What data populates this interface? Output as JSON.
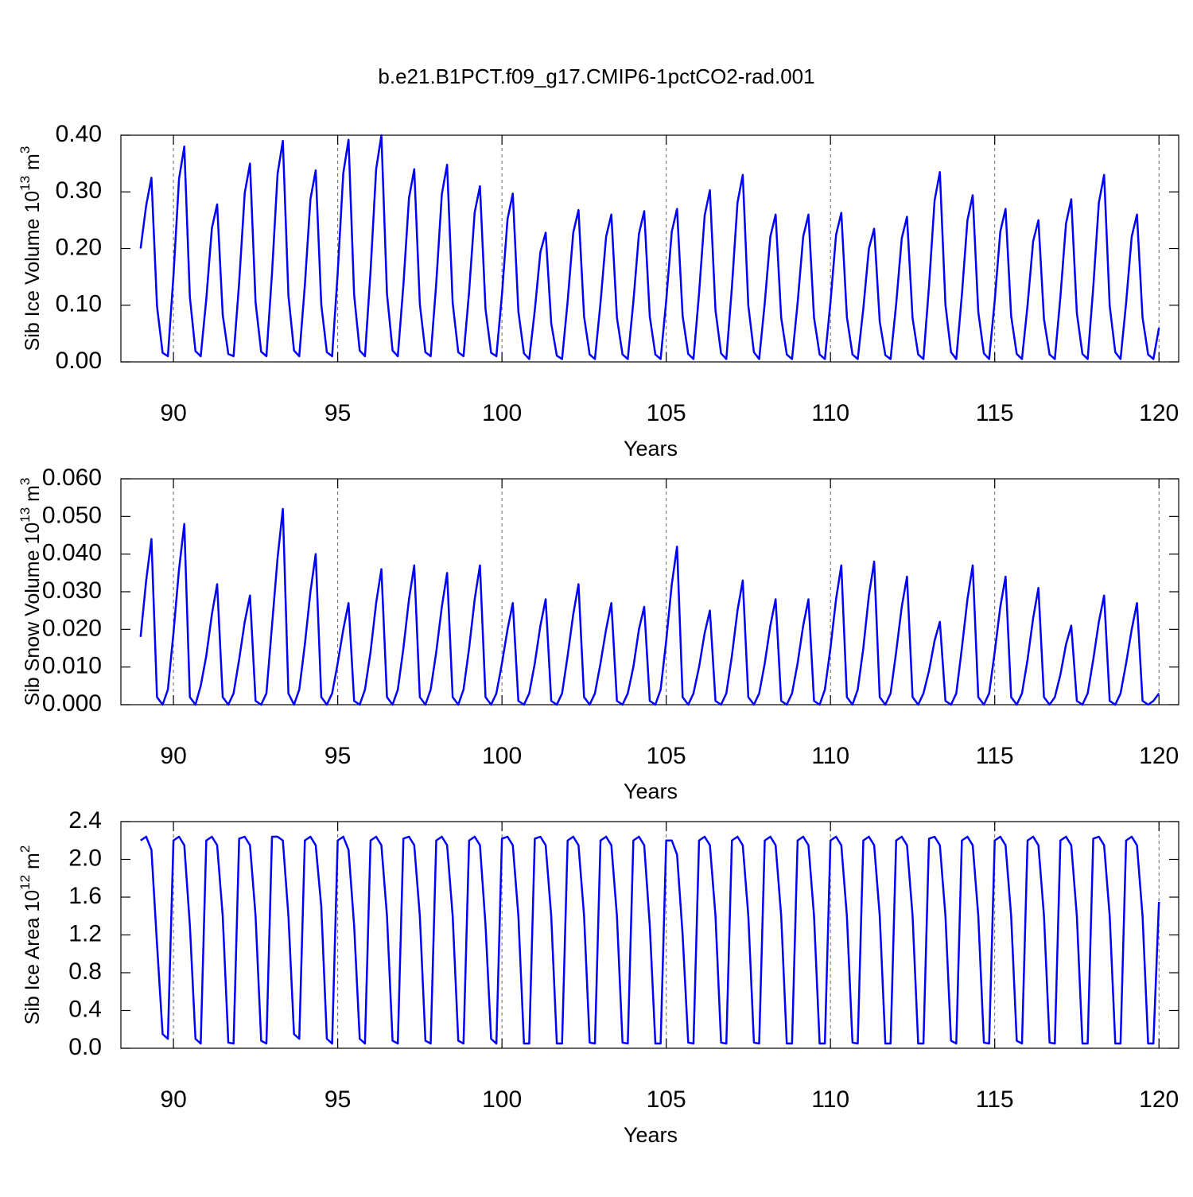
{
  "chart_data": [
    {
      "type": "line",
      "title": "b.e21.B1PCT.f09_g17.CMIP6-1pctCO2-rad.001",
      "ylabel": {
        "text": "Sib Ice Volume 10",
        "exponent": "13",
        "unit": " m",
        "unit_exponent": "3"
      },
      "xlabel": "Years",
      "color": "#0000ff",
      "grid": true,
      "xlim": [
        88.4,
        120.6
      ],
      "xticks": [
        90,
        95,
        100,
        105,
        110,
        115,
        120
      ],
      "ylim": [
        0,
        0.4
      ],
      "yticks": [
        {
          "value": 0,
          "label": "0.00"
        },
        {
          "value": 0.1,
          "label": "0.10"
        },
        {
          "value": 0.2,
          "label": "0.20"
        },
        {
          "value": 0.3,
          "label": "0.30"
        },
        {
          "value": 0.4,
          "label": "0.40"
        }
      ],
      "x": [
        89,
        89.17,
        89.33,
        89.5,
        89.67,
        89.83,
        90,
        90.17,
        90.33,
        90.5,
        90.67,
        90.83,
        91,
        91.17,
        91.33,
        91.5,
        91.67,
        91.83,
        92,
        92.17,
        92.33,
        92.5,
        92.67,
        92.83,
        93,
        93.17,
        93.33,
        93.5,
        93.67,
        93.83,
        94,
        94.17,
        94.33,
        94.5,
        94.67,
        94.83,
        95,
        95.17,
        95.33,
        95.5,
        95.67,
        95.83,
        96,
        96.17,
        96.33,
        96.5,
        96.67,
        96.83,
        97,
        97.17,
        97.33,
        97.5,
        97.67,
        97.83,
        98,
        98.17,
        98.33,
        98.5,
        98.67,
        98.83,
        99,
        99.17,
        99.33,
        99.5,
        99.67,
        99.83,
        100,
        100.17,
        100.33,
        100.5,
        100.67,
        100.83,
        101,
        101.17,
        101.33,
        101.5,
        101.67,
        101.83,
        102,
        102.17,
        102.33,
        102.5,
        102.67,
        102.83,
        103,
        103.17,
        103.33,
        103.5,
        103.67,
        103.83,
        104,
        104.17,
        104.33,
        104.5,
        104.67,
        104.83,
        105,
        105.17,
        105.33,
        105.5,
        105.67,
        105.83,
        106,
        106.17,
        106.33,
        106.5,
        106.67,
        106.83,
        107,
        107.17,
        107.33,
        107.5,
        107.67,
        107.83,
        108,
        108.17,
        108.33,
        108.5,
        108.67,
        108.83,
        109,
        109.17,
        109.33,
        109.5,
        109.67,
        109.83,
        110,
        110.17,
        110.33,
        110.5,
        110.67,
        110.83,
        111,
        111.17,
        111.33,
        111.5,
        111.67,
        111.83,
        112,
        112.17,
        112.33,
        112.5,
        112.67,
        112.83,
        113,
        113.17,
        113.33,
        113.5,
        113.67,
        113.83,
        114,
        114.17,
        114.33,
        114.5,
        114.67,
        114.83,
        115,
        115.17,
        115.33,
        115.5,
        115.67,
        115.83,
        116,
        116.17,
        116.33,
        116.5,
        116.67,
        116.83,
        117,
        117.17,
        117.33,
        117.5,
        117.67,
        117.83,
        118,
        118.17,
        118.33,
        118.5,
        118.67,
        118.83,
        119,
        119.17,
        119.33,
        119.5,
        119.67,
        119.83,
        120
      ],
      "values": [
        0.2,
        0.276,
        0.325,
        0.098,
        0.016,
        0.01,
        0.152,
        0.323,
        0.38,
        0.114,
        0.019,
        0.01,
        0.111,
        0.236,
        0.278,
        0.083,
        0.014,
        0.01,
        0.14,
        0.298,
        0.35,
        0.105,
        0.018,
        0.01,
        0.156,
        0.332,
        0.39,
        0.117,
        0.02,
        0.01,
        0.135,
        0.287,
        0.338,
        0.101,
        0.017,
        0.01,
        0.157,
        0.333,
        0.392,
        0.118,
        0.02,
        0.01,
        0.16,
        0.34,
        0.4,
        0.12,
        0.02,
        0.01,
        0.136,
        0.289,
        0.34,
        0.102,
        0.017,
        0.01,
        0.139,
        0.296,
        0.348,
        0.104,
        0.017,
        0.01,
        0.124,
        0.264,
        0.31,
        0.093,
        0.016,
        0.01,
        0.119,
        0.252,
        0.297,
        0.089,
        0.015,
        0.005,
        0.091,
        0.194,
        0.228,
        0.068,
        0.011,
        0.005,
        0.107,
        0.228,
        0.268,
        0.08,
        0.013,
        0.005,
        0.104,
        0.221,
        0.26,
        0.078,
        0.013,
        0.005,
        0.106,
        0.226,
        0.266,
        0.08,
        0.013,
        0.005,
        0.108,
        0.23,
        0.27,
        0.081,
        0.014,
        0.005,
        0.121,
        0.258,
        0.303,
        0.091,
        0.015,
        0.005,
        0.132,
        0.281,
        0.33,
        0.099,
        0.017,
        0.005,
        0.104,
        0.221,
        0.26,
        0.078,
        0.013,
        0.005,
        0.104,
        0.221,
        0.26,
        0.078,
        0.013,
        0.005,
        0.105,
        0.224,
        0.263,
        0.079,
        0.013,
        0.005,
        0.094,
        0.2,
        0.235,
        0.071,
        0.012,
        0.005,
        0.102,
        0.218,
        0.256,
        0.077,
        0.013,
        0.005,
        0.134,
        0.285,
        0.335,
        0.101,
        0.017,
        0.005,
        0.118,
        0.25,
        0.294,
        0.088,
        0.015,
        0.005,
        0.108,
        0.23,
        0.27,
        0.081,
        0.014,
        0.005,
        0.1,
        0.213,
        0.25,
        0.075,
        0.013,
        0.005,
        0.115,
        0.244,
        0.287,
        0.086,
        0.014,
        0.005,
        0.132,
        0.281,
        0.33,
        0.099,
        0.017,
        0.005,
        0.104,
        0.221,
        0.26,
        0.078,
        0.013,
        0.005,
        0.06
      ]
    },
    {
      "type": "line",
      "ylabel": {
        "text": "Sib Snow Volume 10",
        "exponent": "13",
        "unit": " m",
        "unit_exponent": "3"
      },
      "xlabel": "Years",
      "color": "#0000ff",
      "grid": true,
      "xlim": [
        88.4,
        120.6
      ],
      "xticks": [
        90,
        95,
        100,
        105,
        110,
        115,
        120
      ],
      "ylim": [
        0,
        0.06
      ],
      "yticks": [
        {
          "value": 0,
          "label": "0.000"
        },
        {
          "value": 0.01,
          "label": "0.010"
        },
        {
          "value": 0.02,
          "label": "0.020"
        },
        {
          "value": 0.03,
          "label": "0.030"
        },
        {
          "value": 0.04,
          "label": "0.040"
        },
        {
          "value": 0.05,
          "label": "0.050"
        },
        {
          "value": 0.06,
          "label": "0.060"
        }
      ],
      "x": [
        89,
        89.17,
        89.33,
        89.5,
        89.67,
        89.83,
        90,
        90.17,
        90.33,
        90.5,
        90.67,
        90.83,
        91,
        91.17,
        91.33,
        91.5,
        91.67,
        91.83,
        92,
        92.17,
        92.33,
        92.5,
        92.67,
        92.83,
        93,
        93.17,
        93.33,
        93.5,
        93.67,
        93.83,
        94,
        94.17,
        94.33,
        94.5,
        94.67,
        94.83,
        95,
        95.17,
        95.33,
        95.5,
        95.67,
        95.83,
        96,
        96.17,
        96.33,
        96.5,
        96.67,
        96.83,
        97,
        97.17,
        97.33,
        97.5,
        97.67,
        97.83,
        98,
        98.17,
        98.33,
        98.5,
        98.67,
        98.83,
        99,
        99.17,
        99.33,
        99.5,
        99.67,
        99.83,
        100,
        100.17,
        100.33,
        100.5,
        100.67,
        100.83,
        101,
        101.17,
        101.33,
        101.5,
        101.67,
        101.83,
        102,
        102.17,
        102.33,
        102.5,
        102.67,
        102.83,
        103,
        103.17,
        103.33,
        103.5,
        103.67,
        103.83,
        104,
        104.17,
        104.33,
        104.5,
        104.67,
        104.83,
        105,
        105.17,
        105.33,
        105.5,
        105.67,
        105.83,
        106,
        106.17,
        106.33,
        106.5,
        106.67,
        106.83,
        107,
        107.17,
        107.33,
        107.5,
        107.67,
        107.83,
        108,
        108.17,
        108.33,
        108.5,
        108.67,
        108.83,
        109,
        109.17,
        109.33,
        109.5,
        109.67,
        109.83,
        110,
        110.17,
        110.33,
        110.5,
        110.67,
        110.83,
        111,
        111.17,
        111.33,
        111.5,
        111.67,
        111.83,
        112,
        112.17,
        112.33,
        112.5,
        112.67,
        112.83,
        113,
        113.17,
        113.33,
        113.5,
        113.67,
        113.83,
        114,
        114.17,
        114.33,
        114.5,
        114.67,
        114.83,
        115,
        115.17,
        115.33,
        115.5,
        115.67,
        115.83,
        116,
        116.17,
        116.33,
        116.5,
        116.67,
        116.83,
        117,
        117.17,
        117.33,
        117.5,
        117.67,
        117.83,
        118,
        118.17,
        118.33,
        118.5,
        118.67,
        118.83,
        119,
        119.17,
        119.33,
        119.5,
        119.67,
        119.83,
        120
      ],
      "values": [
        0.018,
        0.033,
        0.044,
        0.002,
        0,
        0.004,
        0.019,
        0.036,
        0.048,
        0.002,
        0,
        0.005,
        0.013,
        0.024,
        0.032,
        0.002,
        0,
        0.003,
        0.012,
        0.022,
        0.029,
        0.001,
        0,
        0.003,
        0.021,
        0.039,
        0.052,
        0.003,
        0,
        0.004,
        0.016,
        0.03,
        0.04,
        0.002,
        0,
        0.003,
        0.011,
        0.02,
        0.027,
        0.001,
        0,
        0.004,
        0.014,
        0.027,
        0.036,
        0.002,
        0,
        0.004,
        0.015,
        0.028,
        0.037,
        0.002,
        0,
        0.004,
        0.014,
        0.026,
        0.035,
        0.002,
        0,
        0.004,
        0.015,
        0.028,
        0.037,
        0.002,
        0,
        0.003,
        0.011,
        0.02,
        0.027,
        0.001,
        0,
        0.003,
        0.011,
        0.021,
        0.028,
        0.001,
        0,
        0.003,
        0.013,
        0.024,
        0.032,
        0.002,
        0,
        0.003,
        0.011,
        0.02,
        0.027,
        0.001,
        0,
        0.003,
        0.01,
        0.02,
        0.026,
        0.001,
        0,
        0.004,
        0.017,
        0.032,
        0.042,
        0.002,
        0,
        0.003,
        0.01,
        0.019,
        0.025,
        0.001,
        0,
        0.003,
        0.013,
        0.025,
        0.033,
        0.002,
        0,
        0.003,
        0.011,
        0.021,
        0.028,
        0.001,
        0,
        0.003,
        0.011,
        0.021,
        0.028,
        0.001,
        0,
        0.004,
        0.015,
        0.028,
        0.037,
        0.002,
        0,
        0.004,
        0.015,
        0.029,
        0.038,
        0.002,
        0,
        0.003,
        0.014,
        0.026,
        0.034,
        0.002,
        0,
        0.003,
        0.009,
        0.017,
        0.022,
        0.001,
        0,
        0.003,
        0.015,
        0.028,
        0.037,
        0.002,
        0,
        0.003,
        0.014,
        0.026,
        0.034,
        0.002,
        0,
        0.003,
        0.012,
        0.023,
        0.031,
        0.002,
        0,
        0.002,
        0.008,
        0.016,
        0.021,
        0.001,
        0,
        0.003,
        0.012,
        0.022,
        0.029,
        0.001,
        0,
        0.003,
        0.011,
        0.02,
        0.027,
        0.001,
        0,
        0.001,
        0.003
      ]
    },
    {
      "type": "line",
      "ylabel": {
        "text": "Sib Ice Area 10",
        "exponent": "12",
        "unit": " m",
        "unit_exponent": "2"
      },
      "xlabel": "Years",
      "color": "#0000ff",
      "grid": true,
      "xlim": [
        88.4,
        120.6
      ],
      "xticks": [
        90,
        95,
        100,
        105,
        110,
        115,
        120
      ],
      "ylim": [
        0,
        2.4
      ],
      "yticks": [
        {
          "value": 0,
          "label": "0.0"
        },
        0.4,
        0.8,
        1.2,
        1.6,
        {
          "value": 2,
          "label": "2.0"
        },
        2.4
      ],
      "x": [
        89,
        89.17,
        89.33,
        89.5,
        89.67,
        89.83,
        90,
        90.17,
        90.33,
        90.5,
        90.67,
        90.83,
        91,
        91.17,
        91.33,
        91.5,
        91.67,
        91.83,
        92,
        92.17,
        92.33,
        92.5,
        92.67,
        92.83,
        93,
        93.17,
        93.33,
        93.5,
        93.67,
        93.83,
        94,
        94.17,
        94.33,
        94.5,
        94.67,
        94.83,
        95,
        95.17,
        95.33,
        95.5,
        95.67,
        95.83,
        96,
        96.17,
        96.33,
        96.5,
        96.67,
        96.83,
        97,
        97.17,
        97.33,
        97.5,
        97.67,
        97.83,
        98,
        98.17,
        98.33,
        98.5,
        98.67,
        98.83,
        99,
        99.17,
        99.33,
        99.5,
        99.67,
        99.83,
        100,
        100.17,
        100.33,
        100.5,
        100.67,
        100.83,
        101,
        101.17,
        101.33,
        101.5,
        101.67,
        101.83,
        102,
        102.17,
        102.33,
        102.5,
        102.67,
        102.83,
        103,
        103.17,
        103.33,
        103.5,
        103.67,
        103.83,
        104,
        104.17,
        104.33,
        104.5,
        104.67,
        104.83,
        105,
        105.17,
        105.33,
        105.5,
        105.67,
        105.83,
        106,
        106.17,
        106.33,
        106.5,
        106.67,
        106.83,
        107,
        107.17,
        107.33,
        107.5,
        107.67,
        107.83,
        108,
        108.17,
        108.33,
        108.5,
        108.67,
        108.83,
        109,
        109.17,
        109.33,
        109.5,
        109.67,
        109.83,
        110,
        110.17,
        110.33,
        110.5,
        110.67,
        110.83,
        111,
        111.17,
        111.33,
        111.5,
        111.67,
        111.83,
        112,
        112.17,
        112.33,
        112.5,
        112.67,
        112.83,
        113,
        113.17,
        113.33,
        113.5,
        113.67,
        113.83,
        114,
        114.17,
        114.33,
        114.5,
        114.67,
        114.83,
        115,
        115.17,
        115.33,
        115.5,
        115.67,
        115.83,
        116,
        116.17,
        116.33,
        116.5,
        116.67,
        116.83,
        117,
        117.17,
        117.33,
        117.5,
        117.67,
        117.83,
        118,
        118.17,
        118.33,
        118.5,
        118.67,
        118.83,
        119,
        119.17,
        119.33,
        119.5,
        119.67,
        119.83,
        120
      ],
      "values": [
        2.2,
        2.24,
        2.1,
        1.1,
        0.15,
        0.1,
        2.2,
        2.24,
        2.15,
        1.3,
        0.1,
        0.05,
        2.2,
        2.24,
        2.15,
        1.4,
        0.06,
        0.05,
        2.22,
        2.24,
        2.15,
        1.4,
        0.08,
        0.05,
        2.24,
        2.24,
        2.2,
        1.4,
        0.15,
        0.1,
        2.2,
        2.24,
        2.15,
        1.5,
        0.1,
        0.05,
        2.2,
        2.24,
        2.1,
        1.3,
        0.1,
        0.05,
        2.2,
        2.24,
        2.15,
        1.4,
        0.08,
        0.05,
        2.22,
        2.24,
        2.15,
        1.4,
        0.08,
        0.05,
        2.2,
        2.24,
        2.15,
        1.4,
        0.08,
        0.05,
        2.2,
        2.24,
        2.15,
        1.3,
        0.1,
        0.05,
        2.22,
        2.24,
        2.15,
        1.4,
        0.05,
        0.05,
        2.22,
        2.24,
        2.15,
        1.4,
        0.05,
        0.05,
        2.2,
        2.24,
        2.15,
        1.4,
        0.06,
        0.05,
        2.2,
        2.24,
        2.15,
        1.4,
        0.06,
        0.05,
        2.2,
        2.24,
        2.15,
        1.3,
        0.05,
        0.05,
        2.2,
        2.2,
        2.05,
        1.2,
        0.06,
        0.05,
        2.2,
        2.24,
        2.15,
        1.4,
        0.06,
        0.05,
        2.2,
        2.24,
        2.15,
        1.4,
        0.06,
        0.05,
        2.2,
        2.24,
        2.15,
        1.4,
        0.05,
        0.05,
        2.2,
        2.24,
        2.15,
        1.4,
        0.05,
        0.05,
        2.2,
        2.24,
        2.15,
        1.4,
        0.06,
        0.05,
        2.2,
        2.24,
        2.15,
        1.4,
        0.05,
        0.05,
        2.2,
        2.24,
        2.15,
        1.4,
        0.05,
        0.05,
        2.22,
        2.24,
        2.15,
        1.4,
        0.08,
        0.05,
        2.2,
        2.24,
        2.15,
        1.4,
        0.06,
        0.05,
        2.2,
        2.24,
        2.15,
        1.4,
        0.08,
        0.05,
        2.2,
        2.24,
        2.15,
        1.4,
        0.06,
        0.05,
        2.2,
        2.24,
        2.15,
        1.4,
        0.05,
        0.05,
        2.22,
        2.24,
        2.15,
        1.4,
        0.05,
        0.05,
        2.2,
        2.24,
        2.15,
        1.4,
        0.05,
        0.05,
        1.55
      ]
    }
  ]
}
